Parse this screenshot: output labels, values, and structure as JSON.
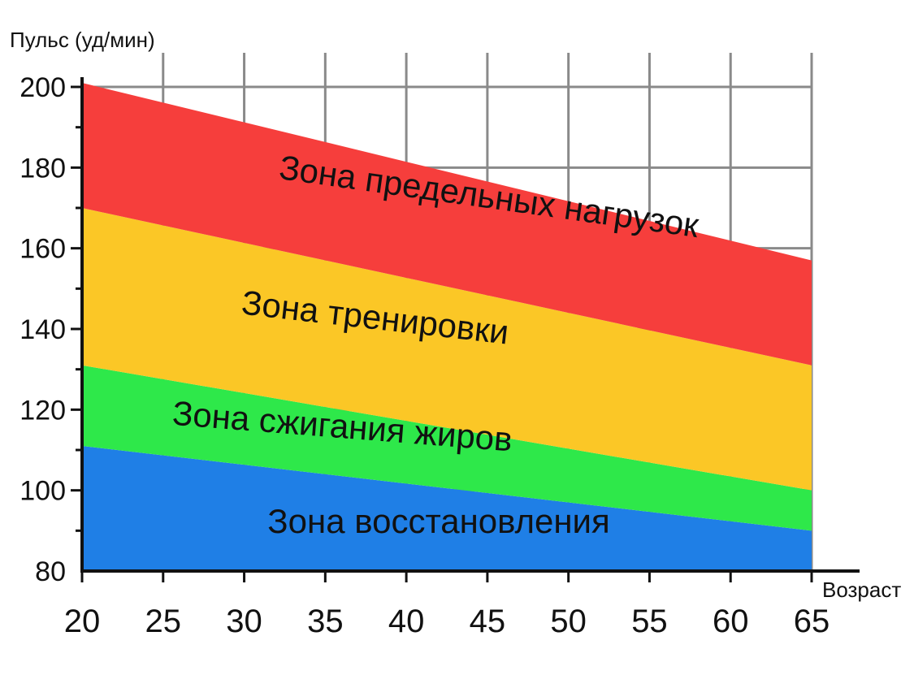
{
  "chart_data": {
    "type": "area",
    "ylabel": "Пульс (уд/мин)",
    "xlabel": "Возраст",
    "x": [
      20,
      25,
      30,
      35,
      40,
      45,
      50,
      55,
      60,
      65
    ],
    "xlim": [
      20,
      65
    ],
    "ylim": [
      80,
      200
    ],
    "yticks": [
      80,
      100,
      120,
      140,
      160,
      180,
      200
    ],
    "grid": true,
    "series": [
      {
        "name": "Зона восстановления",
        "color": "#1f7fe6",
        "lower": [
          80,
          80
        ],
        "upper": [
          111,
          90
        ],
        "label_at": [
          42,
          89.5
        ],
        "label_angle": 0
      },
      {
        "name": "Зона сжигания жиров",
        "color": "#2ee84a",
        "lower": [
          111,
          90
        ],
        "upper": [
          131,
          100
        ],
        "label_at": [
          36,
          113
        ],
        "label_angle": 4.5
      },
      {
        "name": "Зона тренировки",
        "color": "#fbc726",
        "lower": [
          131,
          100
        ],
        "upper": [
          170,
          131
        ],
        "label_at": [
          38,
          140
        ],
        "label_angle": 6.5
      },
      {
        "name": "Зона предельных нагрузок",
        "color": "#f63e3c",
        "lower": [
          170,
          131
        ],
        "upper": [
          201,
          157
        ],
        "label_at": [
          45,
          170
        ],
        "label_angle": 8
      }
    ]
  }
}
